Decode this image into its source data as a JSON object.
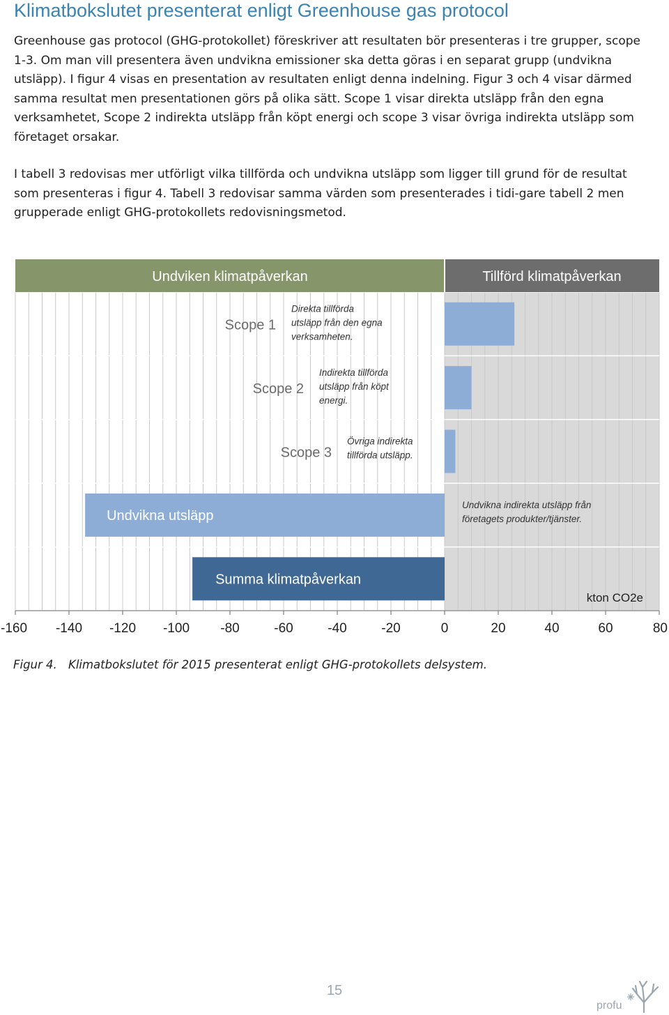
{
  "document": {
    "title": "Klimatbokslutet presenterat enligt Greenhouse gas protocol",
    "paragraph_1": "Greenhouse gas protocol (GHG-protokollet) föreskriver att resultaten bör presenteras i tre grupper, scope 1-3. Om man vill presentera även undvikna emissioner ska detta göras i en separat grupp (undvikna utsläpp). I figur 4 visas en presentation av resultaten enligt denna indelning. Figur 3 och 4 visar därmed samma resultat men presentationen görs på olika sätt. Scope 1 visar direkta utsläpp från den egna verksamhetet, Scope 2 indirekta utsläpp från köpt energi och scope 3 visar övriga indirekta utsläpp som företaget orsakar.",
    "paragraph_2": "I tabell 3 redovisas mer utförligt vilka tillförda och undvikna utsläpp som ligger till grund för de resultat som presenteras i figur 4. Tabell 3 redovisar samma värden som presenterades i tidi-gare tabell 2 men grupperade enligt GHG-protokollets redovisningsmetod.",
    "caption_label": "Figur 4.",
    "caption_text": "Klimatbokslutet för 2015 presenterat enligt GHG-protokollets delsystem.",
    "page_number": "15",
    "logo_text": "profu"
  },
  "chart_data": {
    "type": "bar",
    "orientation": "horizontal",
    "unit_label": "kton CO2e",
    "xlim": [
      -160,
      80
    ],
    "x_ticks": [
      -160,
      -140,
      -120,
      -100,
      -80,
      -60,
      -40,
      -20,
      0,
      20,
      40,
      60,
      80
    ],
    "headers": {
      "negative": "Undviken klimatpåverkan",
      "positive": "Tillförd klimatpåverkan",
      "negative_color": "#87956b",
      "positive_color": "#6d6d6d"
    },
    "rows": [
      {
        "label": "Scope 1",
        "value": 26,
        "description": "Direkta tillförda utsläpp från den egna verksamheten.",
        "color": "#8eadd6"
      },
      {
        "label": "Scope 2",
        "value": 10,
        "description": "Indirekta tillförda utsläpp från köpt energi.",
        "color": "#8eadd6"
      },
      {
        "label": "Scope 3",
        "value": 4,
        "description": "Övriga indirekta tillförda utsläpp.",
        "color": "#8eadd6"
      },
      {
        "label": "Undvikna utsläpp",
        "value": -134,
        "description": "Undvikna indirekta utsläpp från företagets produkter/tjänster.",
        "color": "#8eadd6"
      },
      {
        "label": "Summa klimatpåverkan",
        "value": -94,
        "description": "",
        "color": "#3f6894"
      }
    ],
    "background_colors": {
      "negative": "#ffffff",
      "positive": "#d9d9d9",
      "grid": "#c8c8c8"
    }
  }
}
